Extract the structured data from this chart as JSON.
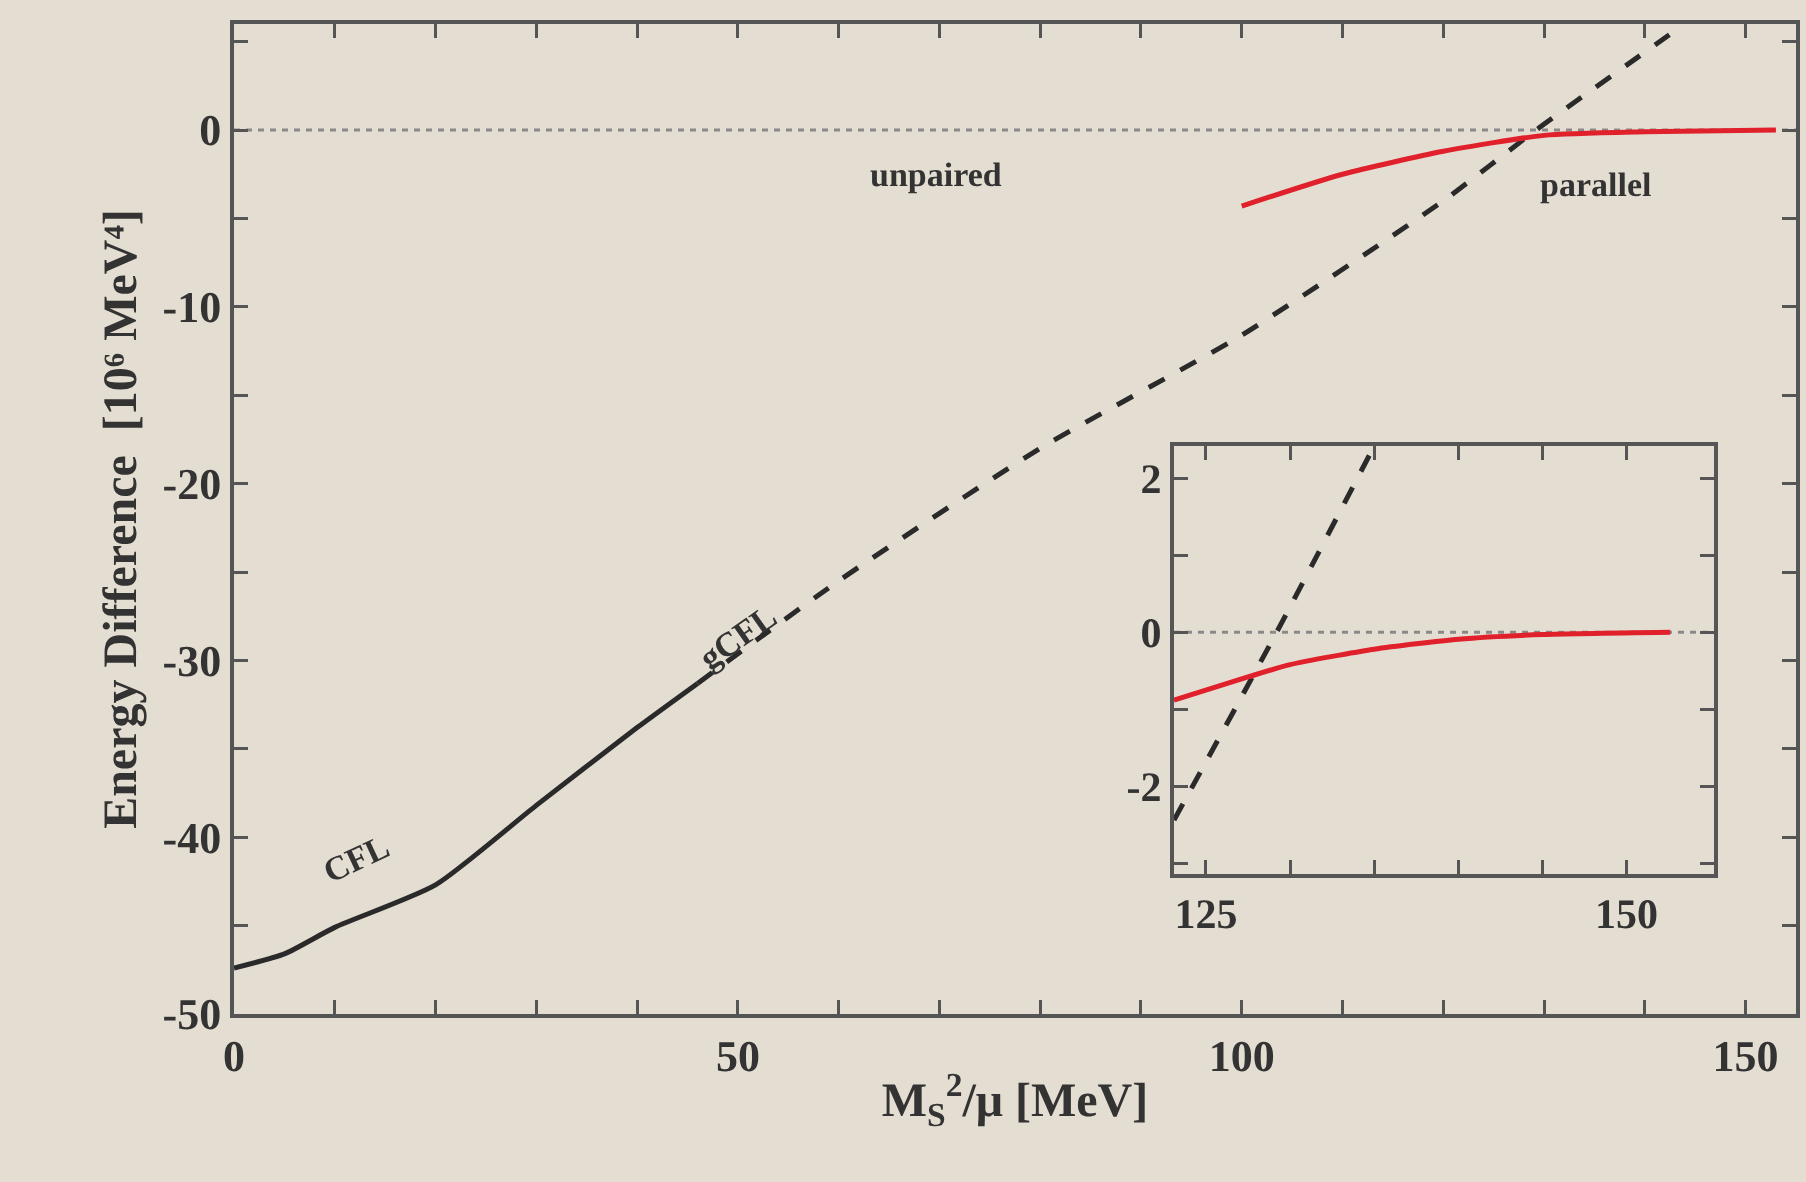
{
  "chart_data": [
    {
      "type": "line",
      "xlabel": "M$_{S}$$^{2}$/μ [MeV]",
      "ylabel": "Energy Difference  [10⁶ MeV⁴]",
      "xlim": [
        0,
        155
      ],
      "ylim": [
        -50,
        6
      ],
      "xticks": [
        0,
        {
          "value": 10,
          "label": null
        },
        {
          "value": 20,
          "label": null
        },
        {
          "value": 30,
          "label": null
        },
        {
          "value": 40,
          "label": null
        },
        50,
        {
          "value": 60,
          "label": null
        },
        {
          "value": 70,
          "label": null
        },
        {
          "value": 80,
          "label": null
        },
        {
          "value": 90,
          "label": null
        },
        100,
        {
          "value": 110,
          "label": null
        },
        {
          "value": 120,
          "label": null
        },
        {
          "value": 130,
          "label": null
        },
        {
          "value": 140,
          "label": null
        },
        150
      ],
      "yticks": [
        -50,
        {
          "value": -45,
          "label": null
        },
        -40,
        {
          "value": -35,
          "label": null
        },
        -30,
        {
          "value": -25,
          "label": null
        },
        -20,
        {
          "value": -15,
          "label": null
        },
        -10,
        {
          "value": -5,
          "label": null
        },
        0,
        {
          "value": 5,
          "label": null
        }
      ],
      "series": [
        {
          "color": "#2a2a2a",
          "line_style": "solid",
          "x": [
            0,
            5,
            10,
            20,
            30,
            40,
            46
          ],
          "values": [
            -47.4,
            -46.6,
            -45.1,
            -42.7,
            -38.2,
            -33.8,
            -31.3
          ]
        },
        {
          "color": "#2a2a2a",
          "line_style": "dashed",
          "x": [
            46,
            60,
            80,
            100,
            120,
            129.2,
            143.7
          ],
          "values": [
            -31.3,
            -25.5,
            -18,
            -11.6,
            -4,
            0,
            5.9
          ]
        },
        {
          "color": "#e0202a",
          "line_style": "solid",
          "x": [
            100,
            110,
            120,
            130,
            140,
            153
          ],
          "values": [
            -4.3,
            -2.5,
            -1.2,
            -0.3,
            -0.1,
            0
          ]
        }
      ],
      "ref_lines": [
        {
          "axis": "y",
          "value": 0,
          "line_style": "dotted",
          "color": "#8a8a8a"
        }
      ],
      "annotations": [
        "unpaired",
        "parallel",
        "CFL",
        "gCFL"
      ]
    },
    {
      "type": "line",
      "xlim": [
        123.1,
        155.2
      ],
      "ylim": [
        -3.14,
        2.42
      ],
      "xticks": [
        125,
        {
          "value": 130,
          "label": null
        },
        {
          "value": 135,
          "label": null
        },
        {
          "value": 140,
          "label": null
        },
        {
          "value": 145,
          "label": null
        },
        150
      ],
      "yticks": [
        {
          "value": -3,
          "label": null
        },
        -2,
        {
          "value": -1,
          "label": null
        },
        0,
        {
          "value": 1,
          "label": null
        },
        2
      ],
      "series": [
        {
          "color": "#2a2a2a",
          "line_style": "dashed",
          "x": [
            123.1,
            129.2,
            135
          ],
          "values": [
            -2.44,
            0,
            2.42
          ]
        },
        {
          "color": "#e0202a",
          "line_style": "solid",
          "x": [
            123.1,
            127.5,
            130,
            135,
            140,
            145,
            152.6
          ],
          "values": [
            -0.88,
            -0.58,
            -0.42,
            -0.22,
            -0.09,
            -0.03,
            0
          ]
        }
      ],
      "ref_lines": [
        {
          "axis": "y",
          "value": 0,
          "line_style": "dotted",
          "color": "#8a8a8a"
        }
      ]
    }
  ]
}
